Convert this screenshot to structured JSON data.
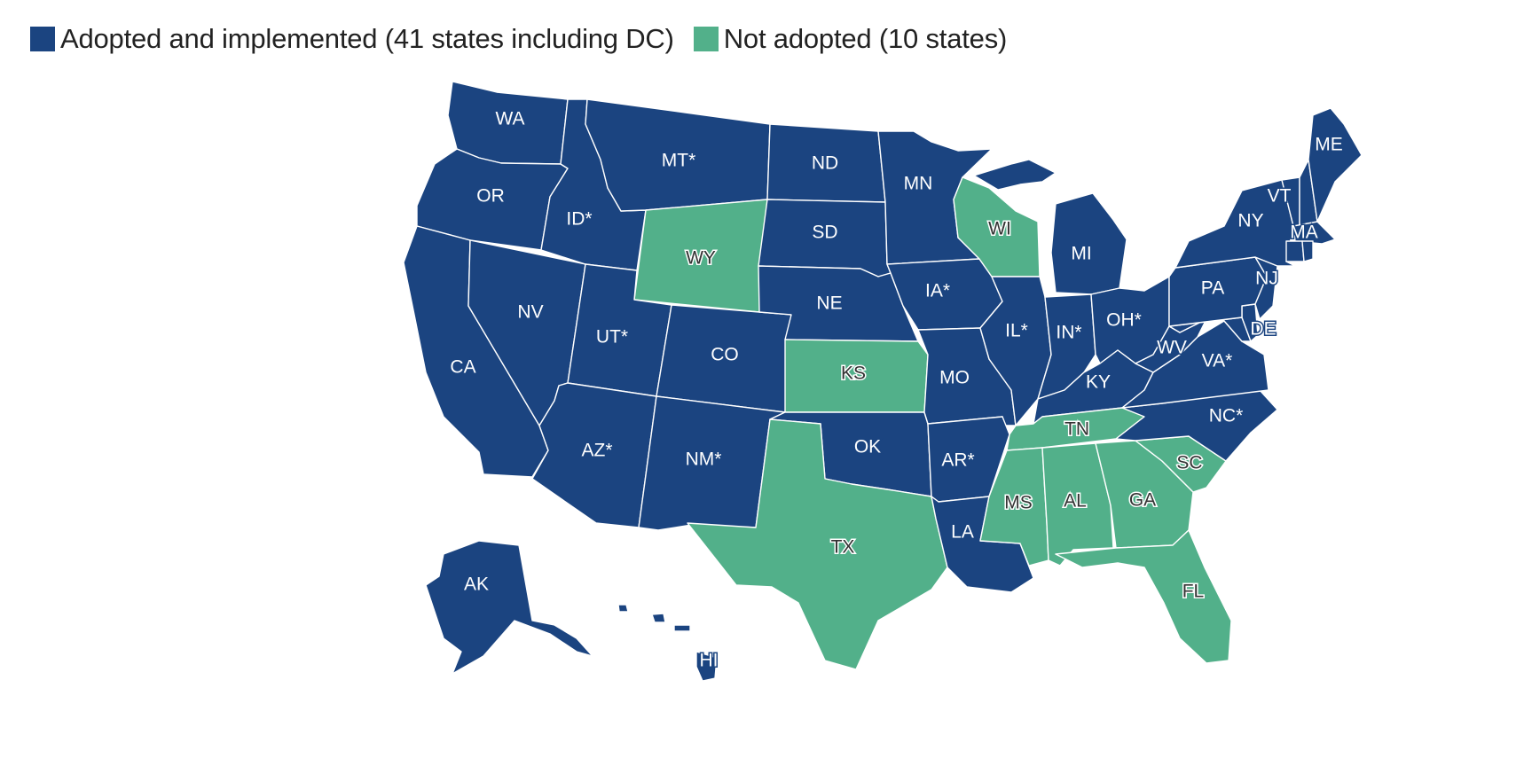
{
  "colors": {
    "adopted": "#1b4480",
    "not_adopted": "#52b08a"
  },
  "legend": [
    {
      "key": "adopted",
      "label": "Adopted and implemented (41 states including DC)"
    },
    {
      "key": "not_adopted",
      "label": "Not adopted (10 states)"
    }
  ],
  "states": {
    "WA": "adopted",
    "OR": "adopted",
    "CA": "adopted",
    "NV": "adopted",
    "ID": "adopted",
    "MT": "adopted",
    "WY": "not_adopted",
    "UT": "adopted",
    "AZ": "adopted",
    "CO": "adopted",
    "NM": "adopted",
    "ND": "adopted",
    "SD": "adopted",
    "NE": "adopted",
    "KS": "not_adopted",
    "OK": "adopted",
    "TX": "not_adopted",
    "MN": "adopted",
    "IA": "adopted",
    "MO": "adopted",
    "AR": "adopted",
    "LA": "adopted",
    "WI": "not_adopted",
    "IL": "adopted",
    "MI": "adopted",
    "IN": "adopted",
    "OH": "adopted",
    "KY": "adopted",
    "TN": "not_adopted",
    "MS": "not_adopted",
    "AL": "not_adopted",
    "GA": "not_adopted",
    "FL": "not_adopted",
    "SC": "not_adopted",
    "NC": "adopted",
    "VA": "adopted",
    "WV": "adopted",
    "PA": "adopted",
    "NY": "adopted",
    "VT": "adopted",
    "NH": "adopted",
    "ME": "adopted",
    "MA": "adopted",
    "RI": "adopted",
    "CT": "adopted",
    "NJ": "adopted",
    "DE": "adopted",
    "MD": "adopted",
    "AK": "adopted",
    "HI": "adopted"
  },
  "labels": {
    "WA": "WA",
    "OR": "OR",
    "CA": "CA",
    "NV": "NV",
    "ID": "ID*",
    "MT": "MT*",
    "WY": "WY",
    "UT": "UT*",
    "AZ": "AZ*",
    "CO": "CO",
    "NM": "NM*",
    "ND": "ND",
    "SD": "SD",
    "NE": "NE",
    "KS": "KS",
    "OK": "OK",
    "TX": "TX",
    "MN": "MN",
    "IA": "IA*",
    "MO": "MO",
    "AR": "AR*",
    "LA": "LA",
    "WI": "WI",
    "IL": "IL*",
    "MI": "MI",
    "IN": "IN*",
    "OH": "OH*",
    "KY": "KY",
    "TN": "TN",
    "MS": "MS",
    "AL": "AL",
    "GA": "GA",
    "FL": "FL",
    "SC": "SC",
    "NC": "NC*",
    "VA": "VA*",
    "WV": "WV",
    "PA": "PA",
    "NY": "NY",
    "VT": "VT",
    "ME": "ME",
    "MA": "MA",
    "NJ": "NJ",
    "DE": "DE",
    "AK": "AK",
    "HI": "HI"
  }
}
